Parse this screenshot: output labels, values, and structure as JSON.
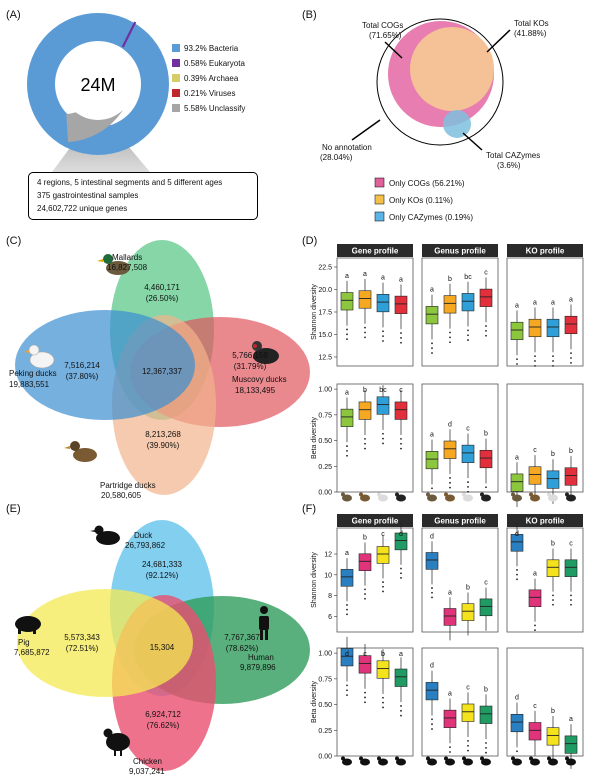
{
  "panels": {
    "a": "(A)",
    "b": "(B)",
    "c": "(C)",
    "d": "(D)",
    "e": "(E)",
    "f": "(F)"
  },
  "a": {
    "center": "24M",
    "legend": [
      {
        "label": "93.2% Bacteria",
        "color": "#5b9bd5"
      },
      {
        "label": "0.58% Eukaryota",
        "color": "#7030a0"
      },
      {
        "label": "0.39% Archaea",
        "color": "#d6cd6a"
      },
      {
        "label": "0.21% Viruses",
        "color": "#c0272d"
      },
      {
        "label": "5.58% Unclassify",
        "color": "#a6a6a6"
      }
    ],
    "info": [
      "4 regions, 5 intestinal segments and 5 different ages",
      "375 gastrointestinal samples",
      "24,602,722 unique genes"
    ]
  },
  "b": {
    "cogs": [
      "Total COGs",
      "(71.65%)"
    ],
    "kos": [
      "Total KOs",
      "(41.88%)"
    ],
    "noann": [
      "No annotation",
      "(28.04%)"
    ],
    "cazy": [
      "Total CAZymes",
      "(3.6%)"
    ],
    "legend": [
      {
        "label": "Only COGs (56.21%)",
        "color": "#e0609a"
      },
      {
        "label": "Only KOs (0.11%)",
        "color": "#f5c04a"
      },
      {
        "label": "Only CAZymes (0.19%)",
        "color": "#5bb4e5"
      }
    ]
  },
  "c": {
    "mallards": [
      "Mallards",
      "16,827,508"
    ],
    "peking": [
      "Peking ducks",
      "19,883,551"
    ],
    "muscovy": [
      "Muscovy ducks",
      "18,133,495"
    ],
    "partridge": [
      "Partridge ducks",
      "20,580,605"
    ],
    "top": [
      "4,460,171",
      "(26.50%)"
    ],
    "left": [
      "7,516,214",
      "(37.80%)"
    ],
    "right": [
      "5,766,158",
      "(31.79%)"
    ],
    "bottom": [
      "8,213,268",
      "(39.90%)"
    ],
    "center": "12,367,337"
  },
  "d": {
    "titles": [
      "Gene profile",
      "Genus profile",
      "KO profile"
    ],
    "ylab_top": "Shannon diversity",
    "ylab_bottom": "Beta diversity",
    "colors": [
      "#8cc63f",
      "#f7a823",
      "#2f9fd8",
      "#e1303b"
    ],
    "shannon_gene": {
      "ticks": [
        "12.5",
        "15.0",
        "17.5",
        "20.0",
        "22.5"
      ],
      "letters": [
        "a",
        "a",
        "a",
        "a"
      ],
      "median": [
        18.8,
        19.0,
        18.6,
        18.4
      ]
    },
    "shannon_genus": {
      "letters": [
        "a",
        "b",
        "bc",
        "c"
      ],
      "median": [
        4.9,
        5.4,
        5.5,
        5.7
      ]
    },
    "shannon_ko": {
      "letters": [
        "a",
        "a",
        "a",
        "a"
      ],
      "median": [
        9.8,
        9.85,
        9.85,
        9.9
      ]
    },
    "beta_gene": {
      "ticks": [
        "0.00",
        "0.25",
        "0.50",
        "0.75",
        "1.00"
      ],
      "letters": [
        "a",
        "b",
        "bc",
        "c"
      ],
      "median": [
        0.73,
        0.8,
        0.85,
        0.8
      ]
    },
    "beta_genus": {
      "letters": [
        "a",
        "d",
        "c",
        "b"
      ],
      "median": [
        0.32,
        0.42,
        0.38,
        0.33
      ]
    },
    "beta_ko": {
      "letters": [
        "a",
        "c",
        "b",
        "b"
      ],
      "median": [
        0.1,
        0.17,
        0.13,
        0.16
      ]
    }
  },
  "e": {
    "duck": [
      "Duck",
      "26,793,862"
    ],
    "pig": [
      "Pig",
      "7,685,872"
    ],
    "human": [
      "Human",
      "9,879,896"
    ],
    "chicken": [
      "Chicken",
      "9,037,241"
    ],
    "top": [
      "24,681,333",
      "(92.12%)"
    ],
    "left": [
      "5,573,343",
      "(72.51%)"
    ],
    "right": [
      "7,767,367",
      "(78.62%)"
    ],
    "bottom": [
      "6,924,712",
      "(76.62%)"
    ],
    "center": "15,304"
  },
  "f": {
    "titles": [
      "Gene profile",
      "Genus profile",
      "KO profile"
    ],
    "ylab_top": "Shannon diversity",
    "ylab_bottom": "Beta diversity",
    "colors": [
      "#2a7fc0",
      "#e0337a",
      "#f3e21c",
      "#1f9b63"
    ],
    "shannon_gene": {
      "ticks": [
        "6",
        "8",
        "10",
        "12"
      ],
      "letters": [
        "a",
        "b",
        "c",
        "d"
      ],
      "median": [
        9.8,
        11.3,
        12.0,
        13.3
      ]
    },
    "shannon_genus": {
      "letters": [
        "d",
        "a",
        "b",
        "c"
      ],
      "median": [
        5.0,
        1.5,
        1.8,
        2.1
      ]
    },
    "shannon_ko": {
      "letters": [
        "d",
        "a",
        "b",
        "c"
      ],
      "median": [
        9.8,
        5.0,
        7.6,
        7.6
      ]
    },
    "beta_gene": {
      "ticks": [
        "0.00",
        "0.25",
        "0.50",
        "0.75",
        "1.00"
      ],
      "letters": [
        "d",
        "c",
        "b",
        "a"
      ],
      "median": [
        0.97,
        0.9,
        0.85,
        0.77
      ]
    },
    "beta_genus": {
      "letters": [
        "d",
        "a",
        "c",
        "b"
      ],
      "median": [
        0.64,
        0.37,
        0.43,
        0.41
      ]
    },
    "beta_ko": {
      "letters": [
        "d",
        "c",
        "b",
        "a"
      ],
      "median": [
        0.33,
        0.25,
        0.2,
        0.12
      ]
    }
  }
}
